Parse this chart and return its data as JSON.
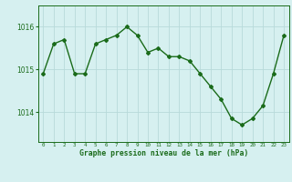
{
  "x": [
    0,
    1,
    2,
    3,
    4,
    5,
    6,
    7,
    8,
    9,
    10,
    11,
    12,
    13,
    14,
    15,
    16,
    17,
    18,
    19,
    20,
    21,
    22,
    23
  ],
  "y": [
    1014.9,
    1015.6,
    1015.7,
    1014.9,
    1014.9,
    1015.6,
    1015.7,
    1015.8,
    1016.0,
    1015.8,
    1015.4,
    1015.5,
    1015.3,
    1015.3,
    1015.2,
    1014.9,
    1014.6,
    1014.3,
    1013.85,
    1013.7,
    1013.85,
    1014.15,
    1014.9,
    1015.8
  ],
  "line_color": "#1a6b1a",
  "marker": "D",
  "markersize": 2.0,
  "bg_color": "#d6f0f0",
  "grid_color": "#b8dada",
  "xlabel": "Graphe pression niveau de la mer (hPa)",
  "xlabel_color": "#1a6b1a",
  "tick_color": "#1a6b1a",
  "yticks": [
    1014,
    1015,
    1016
  ],
  "ylim": [
    1013.3,
    1016.5
  ],
  "xlim": [
    -0.5,
    23.5
  ],
  "xtick_labels": [
    "0",
    "1",
    "2",
    "3",
    "4",
    "5",
    "6",
    "7",
    "8",
    "9",
    "10",
    "11",
    "12",
    "13",
    "14",
    "15",
    "16",
    "17",
    "18",
    "19",
    "20",
    "21",
    "22",
    "23"
  ],
  "linewidth": 1.0
}
